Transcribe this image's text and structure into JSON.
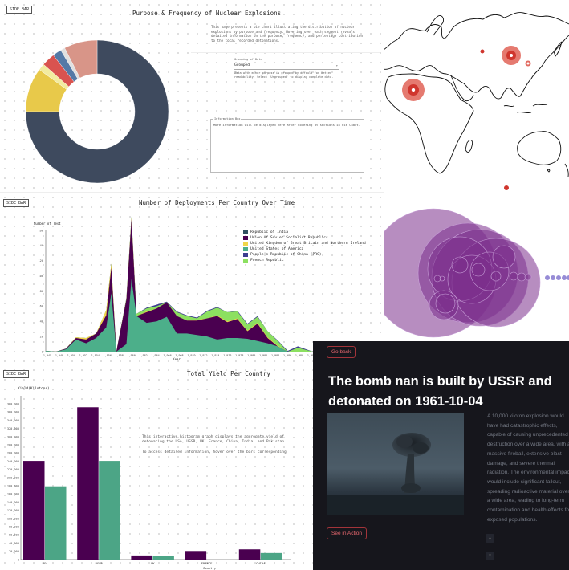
{
  "pie_panel": {
    "side_bar": "SIDE BAR",
    "title": "Purpose & Frequency of Nuclear Explosions",
    "description": "This page presents a pie chart illustrating the distribution of nuclear explosions by purpose and frequency. Hovering over each segment reveals detailed information on the purpose, frequency, and percentage contribution to the total recorded detonations.",
    "select_label": "Grouping of Data",
    "select_value": "Grouped",
    "select_help": "Data with minor purpose is grouped by default for better readability. Select 'Ungrouped' to display complete data.",
    "info_label": "Information Box",
    "info_text": "More information will be displayed here after hovering at sections in Pie Chart.",
    "chart_data": {
      "type": "pie",
      "slices": [
        {
          "value": 75,
          "color": "#3e4a5e"
        },
        {
          "value": 10,
          "color": "#e8c94a"
        },
        {
          "value": 1.5,
          "color": "#f2eba0"
        },
        {
          "value": 3,
          "color": "#d9534f"
        },
        {
          "value": 2,
          "color": "#5479a6"
        },
        {
          "value": 1,
          "color": "#e0e0e0"
        },
        {
          "value": 7.5,
          "color": "#d89588"
        }
      ]
    }
  },
  "area_panel": {
    "side_bar": "SIDE BAR",
    "title": "Number of Deployments Per Country Over Time",
    "ylabel": "Number of Test",
    "xlabel": "Year",
    "legend": [
      {
        "label": "Republic of India",
        "color": "#2f4f5f"
      },
      {
        "label": "Union of Soviet Socialist Republics",
        "color": "#4a0050"
      },
      {
        "label": "United Kingdom of Great Britain and Northern Ireland",
        "color": "#f0d64a"
      },
      {
        "label": "United States of America",
        "color": "#4caf8a"
      },
      {
        "label": "People's Republic of China (PRC)",
        "color": "#3d3d8f"
      },
      {
        "label": "French Republic",
        "color": "#8ce060"
      }
    ],
    "chart_data": {
      "type": "area",
      "x": [
        1945,
        1947,
        1949,
        1951,
        1953,
        1955,
        1957,
        1958,
        1959,
        1961,
        1962,
        1963,
        1965,
        1967,
        1969,
        1971,
        1973,
        1975,
        1977,
        1979,
        1981,
        1983,
        1985,
        1987,
        1989,
        1991,
        1993,
        1995,
        1998
      ],
      "yticks": [
        0,
        20,
        40,
        60,
        80,
        100,
        120,
        140,
        160
      ],
      "xticks": [
        "1,945",
        "1,948",
        "1,950",
        "1,952",
        "1,954",
        "1,956",
        "1,958",
        "1,960",
        "1,962",
        "1,964",
        "1,966",
        "1,968",
        "1,970",
        "1,972",
        "1,974",
        "1,976",
        "1,978",
        "1,980",
        "1,982",
        "1,984",
        "1,986",
        "1,988",
        "1,990"
      ],
      "series": [
        {
          "name": "United States of America",
          "color": "#4caf8a",
          "values": [
            1,
            0,
            3,
            16,
            11,
            18,
            32,
            77,
            0,
            10,
            96,
            47,
            38,
            40,
            46,
            24,
            24,
            22,
            20,
            16,
            18,
            18,
            17,
            14,
            11,
            7,
            0,
            0,
            0
          ]
        },
        {
          "name": "Union of Soviet Socialist Republics",
          "color": "#4a0050",
          "values": [
            0,
            0,
            1,
            2,
            5,
            6,
            16,
            34,
            0,
            59,
            79,
            0,
            14,
            17,
            19,
            23,
            17,
            19,
            24,
            31,
            21,
            25,
            10,
            23,
            7,
            0,
            0,
            0,
            0
          ]
        },
        {
          "name": "United Kingdom of Great Britain and Northern Ireland",
          "color": "#f0d64a",
          "values": [
            0,
            0,
            0,
            1,
            2,
            0,
            7,
            5,
            0,
            0,
            2,
            0,
            1,
            0,
            0,
            0,
            0,
            1,
            0,
            1,
            1,
            1,
            1,
            1,
            1,
            1,
            0,
            0,
            0
          ]
        },
        {
          "name": "French Republic",
          "color": "#8ce060",
          "values": [
            0,
            0,
            0,
            0,
            0,
            0,
            0,
            0,
            0,
            2,
            1,
            3,
            4,
            3,
            0,
            5,
            6,
            2,
            9,
            10,
            12,
            9,
            8,
            8,
            8,
            6,
            0,
            5,
            0
          ]
        },
        {
          "name": "People's Republic of China (PRC)",
          "color": "#3d3d8f",
          "values": [
            0,
            0,
            0,
            0,
            0,
            0,
            0,
            0,
            0,
            0,
            0,
            0,
            1,
            2,
            1,
            1,
            1,
            1,
            1,
            1,
            0,
            1,
            1,
            1,
            0,
            1,
            1,
            2,
            0
          ]
        }
      ]
    }
  },
  "bar_panel": {
    "side_bar": "SIDE BAR",
    "title": "Total Yield Per Country",
    "ylabel": "Yield(Kilotons)",
    "xlabel": "Country",
    "description": "This interactive histogram graph displays the aggregate yield of detonating the USA, USSR, UK, France, China, India, and Pakistan",
    "hint": "To access detailed information, hover over the bars corresponding",
    "chart_data": {
      "type": "bar",
      "categories": [
        "USA",
        "USSR",
        "UK",
        "FRANCE",
        "CHINA"
      ],
      "ylim": [
        0,
        400000
      ],
      "yticks": [
        "0",
        "20,000",
        "40,000",
        "60,000",
        "80,000",
        "100,000",
        "120,000",
        "140,000",
        "160,000",
        "180,000",
        "200,000",
        "220,000",
        "240,000",
        "260,000",
        "280,000",
        "300,000",
        "320,000",
        "340,000",
        "360,000",
        "380,000"
      ],
      "series": [
        {
          "color": "#4a0050",
          "values": [
            241000,
            372000,
            10000,
            21000,
            25000
          ]
        },
        {
          "color": "#4ca586",
          "values": [
            179000,
            241000,
            8000,
            0,
            16000
          ]
        }
      ]
    }
  },
  "detail_panel": {
    "go_back": "Go back",
    "title": "The bomb nan is built by USSR and detonated on 1961-10-04",
    "paragraph": "A 10,000 kiloton explosion would have had catastrophic effects, capable of causing unprecedented destruction over a wide area, with a massive fireball, extensive blast damage, and severe thermal radiation. The environmental impact would include significant fallout, spreading radioactive material over a wide area, leading to long-term contamination and health effects for exposed populations.",
    "action": "See in Action",
    "small_icons": [
      "▴",
      "▾"
    ]
  }
}
